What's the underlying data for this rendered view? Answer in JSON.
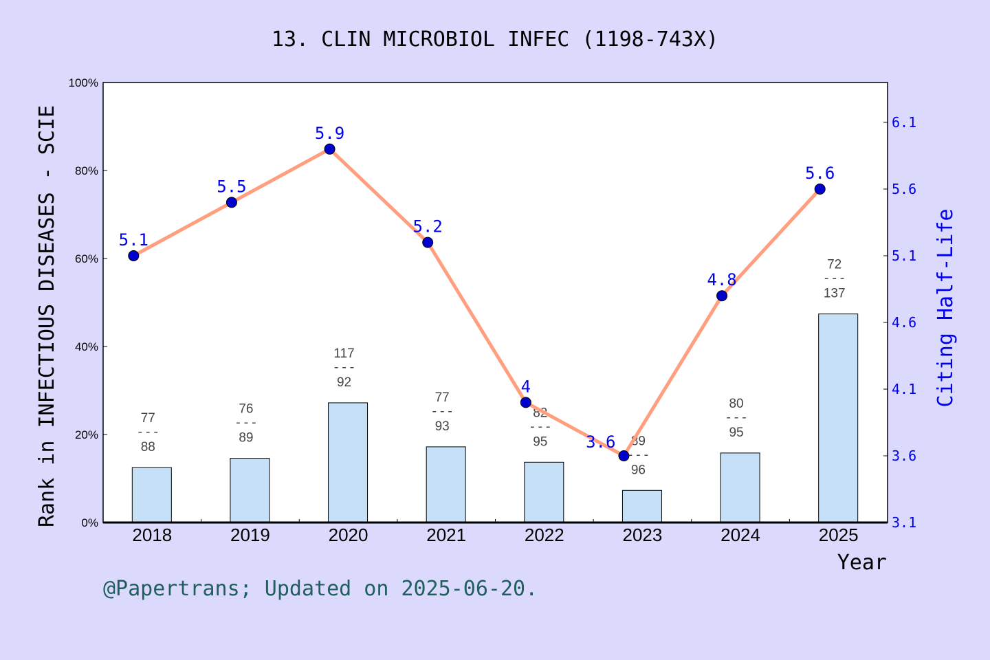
{
  "chart_data": {
    "type": "bar+line",
    "title": "13. CLIN MICROBIOL INFEC (1198-743X)",
    "xlabel": "Year",
    "ylabel_left": "Rank in INFECTIOUS DISEASES - SCIE",
    "ylabel_right": "Citing Half-Life",
    "categories": [
      "2018",
      "2019",
      "2020",
      "2021",
      "2022",
      "2023",
      "2024",
      "2025"
    ],
    "left_axis": {
      "range": [
        0,
        100
      ],
      "ticks": [
        "0%",
        "20%",
        "40%",
        "60%",
        "80%",
        "100%"
      ]
    },
    "right_axis": {
      "range": [
        3.1,
        6.4
      ],
      "ticks": [
        "3.1",
        "3.6",
        "4.1",
        "4.6",
        "5.1",
        "5.6",
        "6.1"
      ]
    },
    "bar_series": {
      "values_percent": [
        12.5,
        14.6,
        27.2,
        17.2,
        13.7,
        7.3,
        15.8,
        47.4
      ],
      "rank_labels": [
        {
          "rank": "77",
          "total": "88"
        },
        {
          "rank": "76",
          "total": "89"
        },
        {
          "rank": "117",
          "total": "92"
        },
        {
          "rank": "77",
          "total": "93"
        },
        {
          "rank": "82",
          "total": "95"
        },
        {
          "rank": "89",
          "total": "96"
        },
        {
          "rank": "80",
          "total": "95"
        },
        {
          "rank": "72",
          "total": "137"
        }
      ],
      "separator": "---",
      "color": "#c5e0f7"
    },
    "line_series": {
      "values": [
        5.1,
        5.5,
        5.9,
        5.2,
        4,
        3.6,
        4.8,
        5.6
      ],
      "labels": [
        "5.1",
        "5.5",
        "5.9",
        "5.2",
        "4",
        "3.6",
        "4.8",
        "5.6"
      ],
      "line_color": "#ff9f7f",
      "marker_color": "#0000cc",
      "label_color": "#0000ee"
    },
    "grid": false
  },
  "footer": "@Papertrans; Updated on 2025-06-20."
}
